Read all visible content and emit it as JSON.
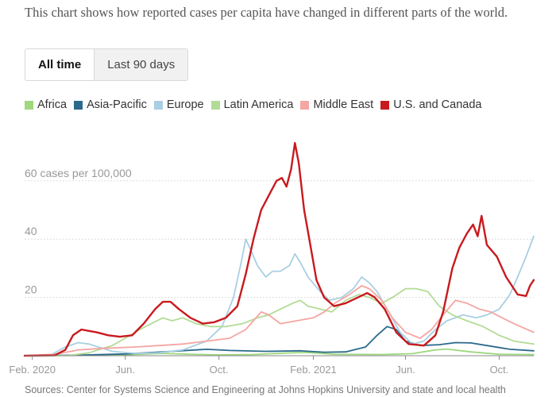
{
  "intro_text": "This chart shows how reported cases per capita have changed in different parts of the world.",
  "toggle": {
    "options": [
      "All time",
      "Last 90 days"
    ],
    "selected": "All time"
  },
  "source_text": "Sources: Center for Systems Science and Engineering at Johns Hopkins University and state and local health",
  "colors": {
    "gridline": "#dddddd",
    "axis": "#999999",
    "tick_text": "#999999"
  },
  "chart_data": {
    "type": "line",
    "title": "",
    "xlabel": "",
    "ylabel": "",
    "y_unit_label": "60 cases per 100,000",
    "xlim": [
      "2020-01-22",
      "2021-11-15"
    ],
    "ylim": [
      0,
      75
    ],
    "x_ticks": [
      {
        "date": "2020-02-01",
        "label": "Feb. 2020"
      },
      {
        "date": "2020-06-01",
        "label": "Jun."
      },
      {
        "date": "2020-10-01",
        "label": "Oct."
      },
      {
        "date": "2021-02-01",
        "label": "Feb. 2021"
      },
      {
        "date": "2021-06-01",
        "label": "Jun."
      },
      {
        "date": "2021-10-01",
        "label": "Oct."
      }
    ],
    "y_ticks": [
      {
        "value": 20,
        "label": "20"
      },
      {
        "value": 40,
        "label": "40"
      },
      {
        "value": 60,
        "label": "60 cases per 100,000"
      }
    ],
    "grid": true,
    "legend_position": "top",
    "series": [
      {
        "name": "Africa",
        "color": "#9fd87f",
        "points": [
          [
            "2020-01-22",
            0
          ],
          [
            "2020-04-01",
            0.1
          ],
          [
            "2020-06-01",
            0.3
          ],
          [
            "2020-07-20",
            0.8
          ],
          [
            "2020-08-25",
            0.5
          ],
          [
            "2020-10-01",
            0.3
          ],
          [
            "2020-11-15",
            0.4
          ],
          [
            "2021-01-05",
            1.0
          ],
          [
            "2021-01-25",
            1.1
          ],
          [
            "2021-03-01",
            0.5
          ],
          [
            "2021-05-01",
            0.4
          ],
          [
            "2021-06-10",
            0.7
          ],
          [
            "2021-07-10",
            2.0
          ],
          [
            "2021-07-25",
            2.3
          ],
          [
            "2021-08-25",
            1.3
          ],
          [
            "2021-10-01",
            0.5
          ],
          [
            "2021-11-15",
            0.4
          ]
        ]
      },
      {
        "name": "Asia-Pacific",
        "color": "#2b6a8c",
        "points": [
          [
            "2020-01-22",
            0
          ],
          [
            "2020-04-01",
            0.2
          ],
          [
            "2020-06-01",
            0.6
          ],
          [
            "2020-08-01",
            1.5
          ],
          [
            "2020-09-15",
            2.2
          ],
          [
            "2020-10-15",
            1.8
          ],
          [
            "2020-12-01",
            1.5
          ],
          [
            "2021-01-15",
            1.7
          ],
          [
            "2021-02-15",
            1.2
          ],
          [
            "2021-03-15",
            1.3
          ],
          [
            "2021-04-10",
            3.0
          ],
          [
            "2021-04-25",
            7.0
          ],
          [
            "2021-05-08",
            10.0
          ],
          [
            "2021-05-20",
            9.0
          ],
          [
            "2021-06-01",
            5.0
          ],
          [
            "2021-06-20",
            3.5
          ],
          [
            "2021-07-15",
            3.8
          ],
          [
            "2021-08-05",
            4.5
          ],
          [
            "2021-08-25",
            4.4
          ],
          [
            "2021-09-15",
            3.5
          ],
          [
            "2021-10-15",
            2.2
          ],
          [
            "2021-11-15",
            1.7
          ]
        ]
      },
      {
        "name": "Europe",
        "color": "#a9cfe2",
        "points": [
          [
            "2020-01-22",
            0
          ],
          [
            "2020-02-25",
            0.3
          ],
          [
            "2020-03-15",
            3.0
          ],
          [
            "2020-04-01",
            4.5
          ],
          [
            "2020-04-15",
            4.0
          ],
          [
            "2020-05-15",
            1.5
          ],
          [
            "2020-06-15",
            0.8
          ],
          [
            "2020-07-15",
            1.0
          ],
          [
            "2020-08-15",
            2.0
          ],
          [
            "2020-09-15",
            5.0
          ],
          [
            "2020-10-05",
            10.0
          ],
          [
            "2020-10-20",
            20.0
          ],
          [
            "2020-10-30",
            32.0
          ],
          [
            "2020-11-05",
            40.0
          ],
          [
            "2020-11-12",
            36.0
          ],
          [
            "2020-11-20",
            31.0
          ],
          [
            "2020-12-01",
            27.0
          ],
          [
            "2020-12-10",
            29.0
          ],
          [
            "2020-12-20",
            29.0
          ],
          [
            "2021-01-01",
            31.0
          ],
          [
            "2021-01-08",
            35.0
          ],
          [
            "2021-01-15",
            32.0
          ],
          [
            "2021-01-25",
            27.0
          ],
          [
            "2021-02-10",
            22.0
          ],
          [
            "2021-02-22",
            19.0
          ],
          [
            "2021-03-10",
            20.0
          ],
          [
            "2021-03-25",
            23.0
          ],
          [
            "2021-04-05",
            27.0
          ],
          [
            "2021-04-15",
            25.0
          ],
          [
            "2021-04-25",
            22.0
          ],
          [
            "2021-05-10",
            15.0
          ],
          [
            "2021-05-25",
            8.0
          ],
          [
            "2021-06-10",
            4.0
          ],
          [
            "2021-06-25",
            5.0
          ],
          [
            "2021-07-10",
            9.0
          ],
          [
            "2021-07-25",
            12.0
          ],
          [
            "2021-08-15",
            14.0
          ],
          [
            "2021-09-01",
            13.0
          ],
          [
            "2021-09-15",
            14.0
          ],
          [
            "2021-10-01",
            16.0
          ],
          [
            "2021-10-15",
            21.0
          ],
          [
            "2021-10-25",
            27.0
          ],
          [
            "2021-11-05",
            34.0
          ],
          [
            "2021-11-15",
            41.0
          ]
        ]
      },
      {
        "name": "Latin America",
        "color": "#b2dc96",
        "points": [
          [
            "2020-01-22",
            0
          ],
          [
            "2020-03-20",
            0.1
          ],
          [
            "2020-04-15",
            1.0
          ],
          [
            "2020-05-15",
            3.5
          ],
          [
            "2020-06-01",
            6.0
          ],
          [
            "2020-06-20",
            9.0
          ],
          [
            "2020-07-05",
            11.0
          ],
          [
            "2020-07-20",
            13.0
          ],
          [
            "2020-08-01",
            12.0
          ],
          [
            "2020-08-15",
            13.0
          ],
          [
            "2020-09-01",
            11.0
          ],
          [
            "2020-09-20",
            10.0
          ],
          [
            "2020-10-10",
            10.0
          ],
          [
            "2020-11-01",
            11.0
          ],
          [
            "2020-11-20",
            13.0
          ],
          [
            "2020-12-05",
            14.0
          ],
          [
            "2020-12-20",
            16.0
          ],
          [
            "2021-01-05",
            18.0
          ],
          [
            "2021-01-15",
            19.0
          ],
          [
            "2021-01-25",
            17.0
          ],
          [
            "2021-02-10",
            16.0
          ],
          [
            "2021-02-25",
            15.0
          ],
          [
            "2021-03-15",
            19.0
          ],
          [
            "2021-04-01",
            21.0
          ],
          [
            "2021-04-15",
            20.0
          ],
          [
            "2021-05-01",
            18.0
          ],
          [
            "2021-05-15",
            20.0
          ],
          [
            "2021-06-01",
            23.0
          ],
          [
            "2021-06-15",
            23.0
          ],
          [
            "2021-06-30",
            22.0
          ],
          [
            "2021-07-15",
            17.0
          ],
          [
            "2021-08-01",
            14.0
          ],
          [
            "2021-08-20",
            12.0
          ],
          [
            "2021-09-10",
            10.0
          ],
          [
            "2021-10-01",
            7.0
          ],
          [
            "2021-10-20",
            5.0
          ],
          [
            "2021-11-15",
            4.0
          ]
        ]
      },
      {
        "name": "Middle East",
        "color": "#f4a6a2",
        "points": [
          [
            "2020-01-22",
            0
          ],
          [
            "2020-03-01",
            0.5
          ],
          [
            "2020-04-01",
            2.0
          ],
          [
            "2020-05-01",
            2.5
          ],
          [
            "2020-06-15",
            3.0
          ],
          [
            "2020-07-15",
            3.5
          ],
          [
            "2020-08-15",
            4.0
          ],
          [
            "2020-09-15",
            5.0
          ],
          [
            "2020-10-15",
            6.0
          ],
          [
            "2020-11-05",
            9.0
          ],
          [
            "2020-11-25",
            15.0
          ],
          [
            "2020-12-05",
            14.0
          ],
          [
            "2020-12-20",
            11.0
          ],
          [
            "2021-01-10",
            12.0
          ],
          [
            "2021-02-01",
            13.0
          ],
          [
            "2021-02-15",
            15.0
          ],
          [
            "2021-03-01",
            18.0
          ],
          [
            "2021-03-20",
            21.0
          ],
          [
            "2021-04-05",
            24.0
          ],
          [
            "2021-04-15",
            23.0
          ],
          [
            "2021-05-01",
            19.0
          ],
          [
            "2021-05-15",
            13.0
          ],
          [
            "2021-06-01",
            8.0
          ],
          [
            "2021-06-20",
            6.0
          ],
          [
            "2021-07-05",
            9.0
          ],
          [
            "2021-07-20",
            14.0
          ],
          [
            "2021-08-05",
            19.0
          ],
          [
            "2021-08-20",
            18.0
          ],
          [
            "2021-09-05",
            16.0
          ],
          [
            "2021-09-20",
            15.0
          ],
          [
            "2021-10-05",
            13.0
          ],
          [
            "2021-10-20",
            11.0
          ],
          [
            "2021-11-15",
            8.0
          ]
        ]
      },
      {
        "name": "U.S. and Canada",
        "color": "#c81a1e",
        "points": [
          [
            "2020-01-22",
            0
          ],
          [
            "2020-03-01",
            0.1
          ],
          [
            "2020-03-15",
            2.0
          ],
          [
            "2020-03-25",
            7.0
          ],
          [
            "2020-04-05",
            9.0
          ],
          [
            "2020-04-15",
            8.5
          ],
          [
            "2020-04-25",
            8.0
          ],
          [
            "2020-05-10",
            7.0
          ],
          [
            "2020-05-25",
            6.5
          ],
          [
            "2020-06-10",
            7.0
          ],
          [
            "2020-06-25",
            11.0
          ],
          [
            "2020-07-10",
            16.0
          ],
          [
            "2020-07-20",
            18.5
          ],
          [
            "2020-07-30",
            18.5
          ],
          [
            "2020-08-10",
            16.0
          ],
          [
            "2020-08-25",
            13.0
          ],
          [
            "2020-09-10",
            11.0
          ],
          [
            "2020-09-25",
            11.5
          ],
          [
            "2020-10-10",
            13.0
          ],
          [
            "2020-10-25",
            17.0
          ],
          [
            "2020-11-05",
            28.0
          ],
          [
            "2020-11-15",
            40.0
          ],
          [
            "2020-11-25",
            50.0
          ],
          [
            "2020-12-05",
            55.0
          ],
          [
            "2020-12-15",
            60.0
          ],
          [
            "2020-12-22",
            61.0
          ],
          [
            "2020-12-28",
            58.0
          ],
          [
            "2021-01-03",
            64.0
          ],
          [
            "2021-01-08",
            73.0
          ],
          [
            "2021-01-13",
            66.0
          ],
          [
            "2021-01-20",
            50.0
          ],
          [
            "2021-01-28",
            38.0
          ],
          [
            "2021-02-05",
            26.0
          ],
          [
            "2021-02-15",
            20.0
          ],
          [
            "2021-02-28",
            17.0
          ],
          [
            "2021-03-15",
            18.0
          ],
          [
            "2021-03-31",
            20.0
          ],
          [
            "2021-04-12",
            21.5
          ],
          [
            "2021-04-22",
            20.0
          ],
          [
            "2021-05-05",
            16.0
          ],
          [
            "2021-05-20",
            8.0
          ],
          [
            "2021-06-05",
            4.0
          ],
          [
            "2021-06-25",
            3.5
          ],
          [
            "2021-07-10",
            7.0
          ],
          [
            "2021-07-20",
            15.0
          ],
          [
            "2021-08-01",
            30.0
          ],
          [
            "2021-08-10",
            37.0
          ],
          [
            "2021-08-20",
            42.0
          ],
          [
            "2021-08-28",
            45.0
          ],
          [
            "2021-09-03",
            41.0
          ],
          [
            "2021-09-08",
            48.0
          ],
          [
            "2021-09-15",
            38.0
          ],
          [
            "2021-09-28",
            34.0
          ],
          [
            "2021-10-10",
            27.0
          ],
          [
            "2021-10-25",
            21.0
          ],
          [
            "2021-11-05",
            20.5
          ],
          [
            "2021-11-10",
            24.0
          ],
          [
            "2021-11-15",
            26.0
          ]
        ]
      }
    ]
  }
}
